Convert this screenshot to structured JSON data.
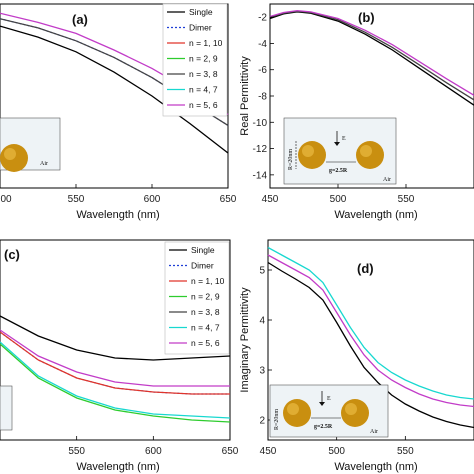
{
  "colors": {
    "single": "#000000",
    "dimer": "#1f3fd6",
    "n1_10": "#e0352b",
    "n2_9": "#2ecc2e",
    "n3_8": "#444444",
    "n4_7": "#18d8d0",
    "n5_6": "#c23cc8"
  },
  "chart_data": [
    {
      "panel": "(a)",
      "type": "line",
      "title": "",
      "xlabel": "Wavelength (nm)",
      "ylabel": "",
      "xlim": [
        500,
        650
      ],
      "ylim": [
        0,
        100
      ],
      "xticks": [
        "00",
        "550",
        "600",
        "650"
      ],
      "yticks": [],
      "legend": {
        "placement": "top-right",
        "entries": [
          {
            "name": "Single",
            "style": "solid",
            "color_key": "single"
          },
          {
            "name": "Dimer",
            "style": "dotted",
            "color_key": "dimer"
          },
          {
            "name": "n = 1, 10",
            "style": "solid",
            "color_key": "n1_10"
          },
          {
            "name": "n = 2, 9",
            "style": "solid",
            "color_key": "n2_9"
          },
          {
            "name": "n = 3, 8",
            "style": "solid",
            "color_key": "n3_8"
          },
          {
            "name": "n = 4, 7",
            "style": "solid",
            "color_key": "n4_7"
          },
          {
            "name": "n = 5, 6",
            "style": "solid",
            "color_key": "n5_6"
          }
        ]
      },
      "series": [
        {
          "color_key": "single",
          "style": "solid",
          "x": [
            500,
            525,
            550,
            575,
            600,
            625,
            650
          ],
          "y": [
            88,
            82,
            74,
            63,
            50,
            35,
            19
          ]
        },
        {
          "color_key": "dimer",
          "style": "dotted",
          "x": [
            500,
            525,
            550,
            575,
            600,
            625,
            650
          ],
          "y": [
            92,
            87,
            80,
            71,
            60,
            47,
            34
          ]
        },
        {
          "color_key": "n3_8",
          "style": "solid",
          "x": [
            500,
            525,
            550,
            575,
            600,
            625,
            650
          ],
          "y": [
            92,
            87,
            80,
            71,
            60,
            47,
            34
          ]
        },
        {
          "color_key": "n5_6",
          "style": "solid",
          "x": [
            500,
            525,
            550,
            575,
            600,
            625,
            650
          ],
          "y": [
            95,
            90,
            84,
            75,
            65,
            53,
            40
          ]
        }
      ],
      "inset": {
        "label": "Air"
      }
    },
    {
      "panel": "(b)",
      "type": "line",
      "title": "",
      "xlabel": "Wavelength (nm)",
      "ylabel": "Real Permittivity",
      "xlim": [
        450,
        600
      ],
      "ylim": [
        -15,
        -1
      ],
      "xticks": [
        "450",
        "500",
        "550"
      ],
      "yticks": [
        "-2",
        "-4",
        "-6",
        "-8",
        "-10",
        "-12",
        "-14"
      ],
      "series": [
        {
          "color_key": "single",
          "style": "solid",
          "x": [
            450,
            460,
            470,
            480,
            500,
            520,
            540,
            560,
            580,
            600
          ],
          "y": [
            -2.1,
            -1.75,
            -1.6,
            -1.7,
            -2.3,
            -3.3,
            -4.5,
            -5.9,
            -7.3,
            -8.7
          ]
        },
        {
          "color_key": "n3_8",
          "style": "solid",
          "x": [
            450,
            460,
            470,
            480,
            500,
            520,
            540,
            560,
            580,
            600
          ],
          "y": [
            -2.0,
            -1.7,
            -1.55,
            -1.65,
            -2.2,
            -3.15,
            -4.3,
            -5.65,
            -7.0,
            -8.3
          ]
        },
        {
          "color_key": "n5_6",
          "style": "solid",
          "x": [
            450,
            460,
            470,
            480,
            500,
            520,
            540,
            560,
            580,
            600
          ],
          "y": [
            -1.95,
            -1.65,
            -1.5,
            -1.6,
            -2.1,
            -3.0,
            -4.1,
            -5.4,
            -6.7,
            -7.95
          ]
        }
      ],
      "inset": {
        "label_r": "R=20nm",
        "label_g": "g=2.5R",
        "label_e": "E",
        "label_air": "Air"
      }
    },
    {
      "panel": "(c)",
      "type": "line",
      "title": "",
      "xlabel": "Wavelength (nm)",
      "ylabel": "",
      "xlim": [
        500,
        650
      ],
      "ylim": [
        0,
        100
      ],
      "xticks": [
        "550",
        "600",
        "650"
      ],
      "yticks": [],
      "legend": {
        "placement": "top-right",
        "entries": [
          {
            "name": "Single",
            "style": "solid",
            "color_key": "single"
          },
          {
            "name": "Dimer",
            "style": "dotted",
            "color_key": "dimer"
          },
          {
            "name": "n = 1, 10",
            "style": "solid",
            "color_key": "n1_10"
          },
          {
            "name": "n = 2, 9",
            "style": "solid",
            "color_key": "n2_9"
          },
          {
            "name": "n = 3, 8",
            "style": "solid",
            "color_key": "n3_8"
          },
          {
            "name": "n = 4, 7",
            "style": "solid",
            "color_key": "n4_7"
          },
          {
            "name": "n = 5, 6",
            "style": "solid",
            "color_key": "n5_6"
          }
        ]
      },
      "series": [
        {
          "color_key": "single",
          "style": "solid",
          "x": [
            500,
            525,
            550,
            575,
            600,
            625,
            650
          ],
          "y": [
            62,
            52,
            45,
            41,
            40,
            41,
            42
          ]
        },
        {
          "color_key": "n5_6",
          "style": "solid",
          "x": [
            500,
            525,
            550,
            575,
            600,
            625,
            650
          ],
          "y": [
            55,
            42,
            34,
            29,
            27,
            27,
            27
          ]
        },
        {
          "color_key": "dimer",
          "style": "dotted",
          "x": [
            500,
            525,
            550,
            575,
            600,
            625,
            650
          ],
          "y": [
            54,
            40,
            31,
            26,
            24,
            23,
            23
          ]
        },
        {
          "color_key": "n1_10",
          "style": "solid",
          "x": [
            500,
            525,
            550,
            575,
            600,
            625,
            650
          ],
          "y": [
            54,
            40,
            31,
            26,
            24,
            23,
            23
          ]
        },
        {
          "color_key": "n4_7",
          "style": "solid",
          "x": [
            500,
            525,
            550,
            575,
            600,
            625,
            650
          ],
          "y": [
            49,
            32,
            22,
            16,
            13,
            12,
            11
          ]
        },
        {
          "color_key": "n2_9",
          "style": "solid",
          "x": [
            500,
            525,
            550,
            575,
            600,
            625,
            650
          ],
          "y": [
            48,
            31,
            21,
            15,
            12,
            10,
            9
          ]
        }
      ]
    },
    {
      "panel": "(d)",
      "type": "line",
      "title": "",
      "xlabel": "Wavelength (nm)",
      "ylabel": "Imaginary Permittivity",
      "xlim": [
        450,
        600
      ],
      "ylim": [
        1.6,
        5.6
      ],
      "xticks": [
        "450",
        "500",
        "550"
      ],
      "yticks": [
        "2",
        "3",
        "4",
        "5"
      ],
      "series": [
        {
          "color_key": "n4_7",
          "style": "solid",
          "x": [
            450,
            460,
            470,
            480,
            490,
            500,
            510,
            520,
            530,
            540,
            550,
            560,
            570,
            580,
            590,
            600
          ],
          "y": [
            5.45,
            5.3,
            5.15,
            5.0,
            4.75,
            4.3,
            3.85,
            3.45,
            3.15,
            2.95,
            2.8,
            2.68,
            2.58,
            2.5,
            2.45,
            2.42
          ]
        },
        {
          "color_key": "n5_6",
          "style": "solid",
          "x": [
            450,
            460,
            470,
            480,
            490,
            500,
            510,
            520,
            530,
            540,
            550,
            560,
            570,
            580,
            590,
            600
          ],
          "y": [
            5.3,
            5.15,
            5.0,
            4.85,
            4.6,
            4.15,
            3.7,
            3.3,
            3.0,
            2.8,
            2.65,
            2.52,
            2.42,
            2.35,
            2.3,
            2.27
          ]
        },
        {
          "color_key": "single",
          "style": "solid",
          "x": [
            450,
            460,
            470,
            480,
            490,
            500,
            510,
            520,
            530,
            540,
            550,
            560,
            570,
            580,
            590,
            600
          ],
          "y": [
            5.15,
            4.98,
            4.82,
            4.65,
            4.4,
            3.95,
            3.48,
            3.05,
            2.75,
            2.5,
            2.32,
            2.18,
            2.06,
            1.97,
            1.9,
            1.85
          ]
        }
      ],
      "inset": {
        "label_r": "R=20nm",
        "label_g": "g=2.5R",
        "label_e": "E",
        "label_air": "Air"
      }
    }
  ]
}
